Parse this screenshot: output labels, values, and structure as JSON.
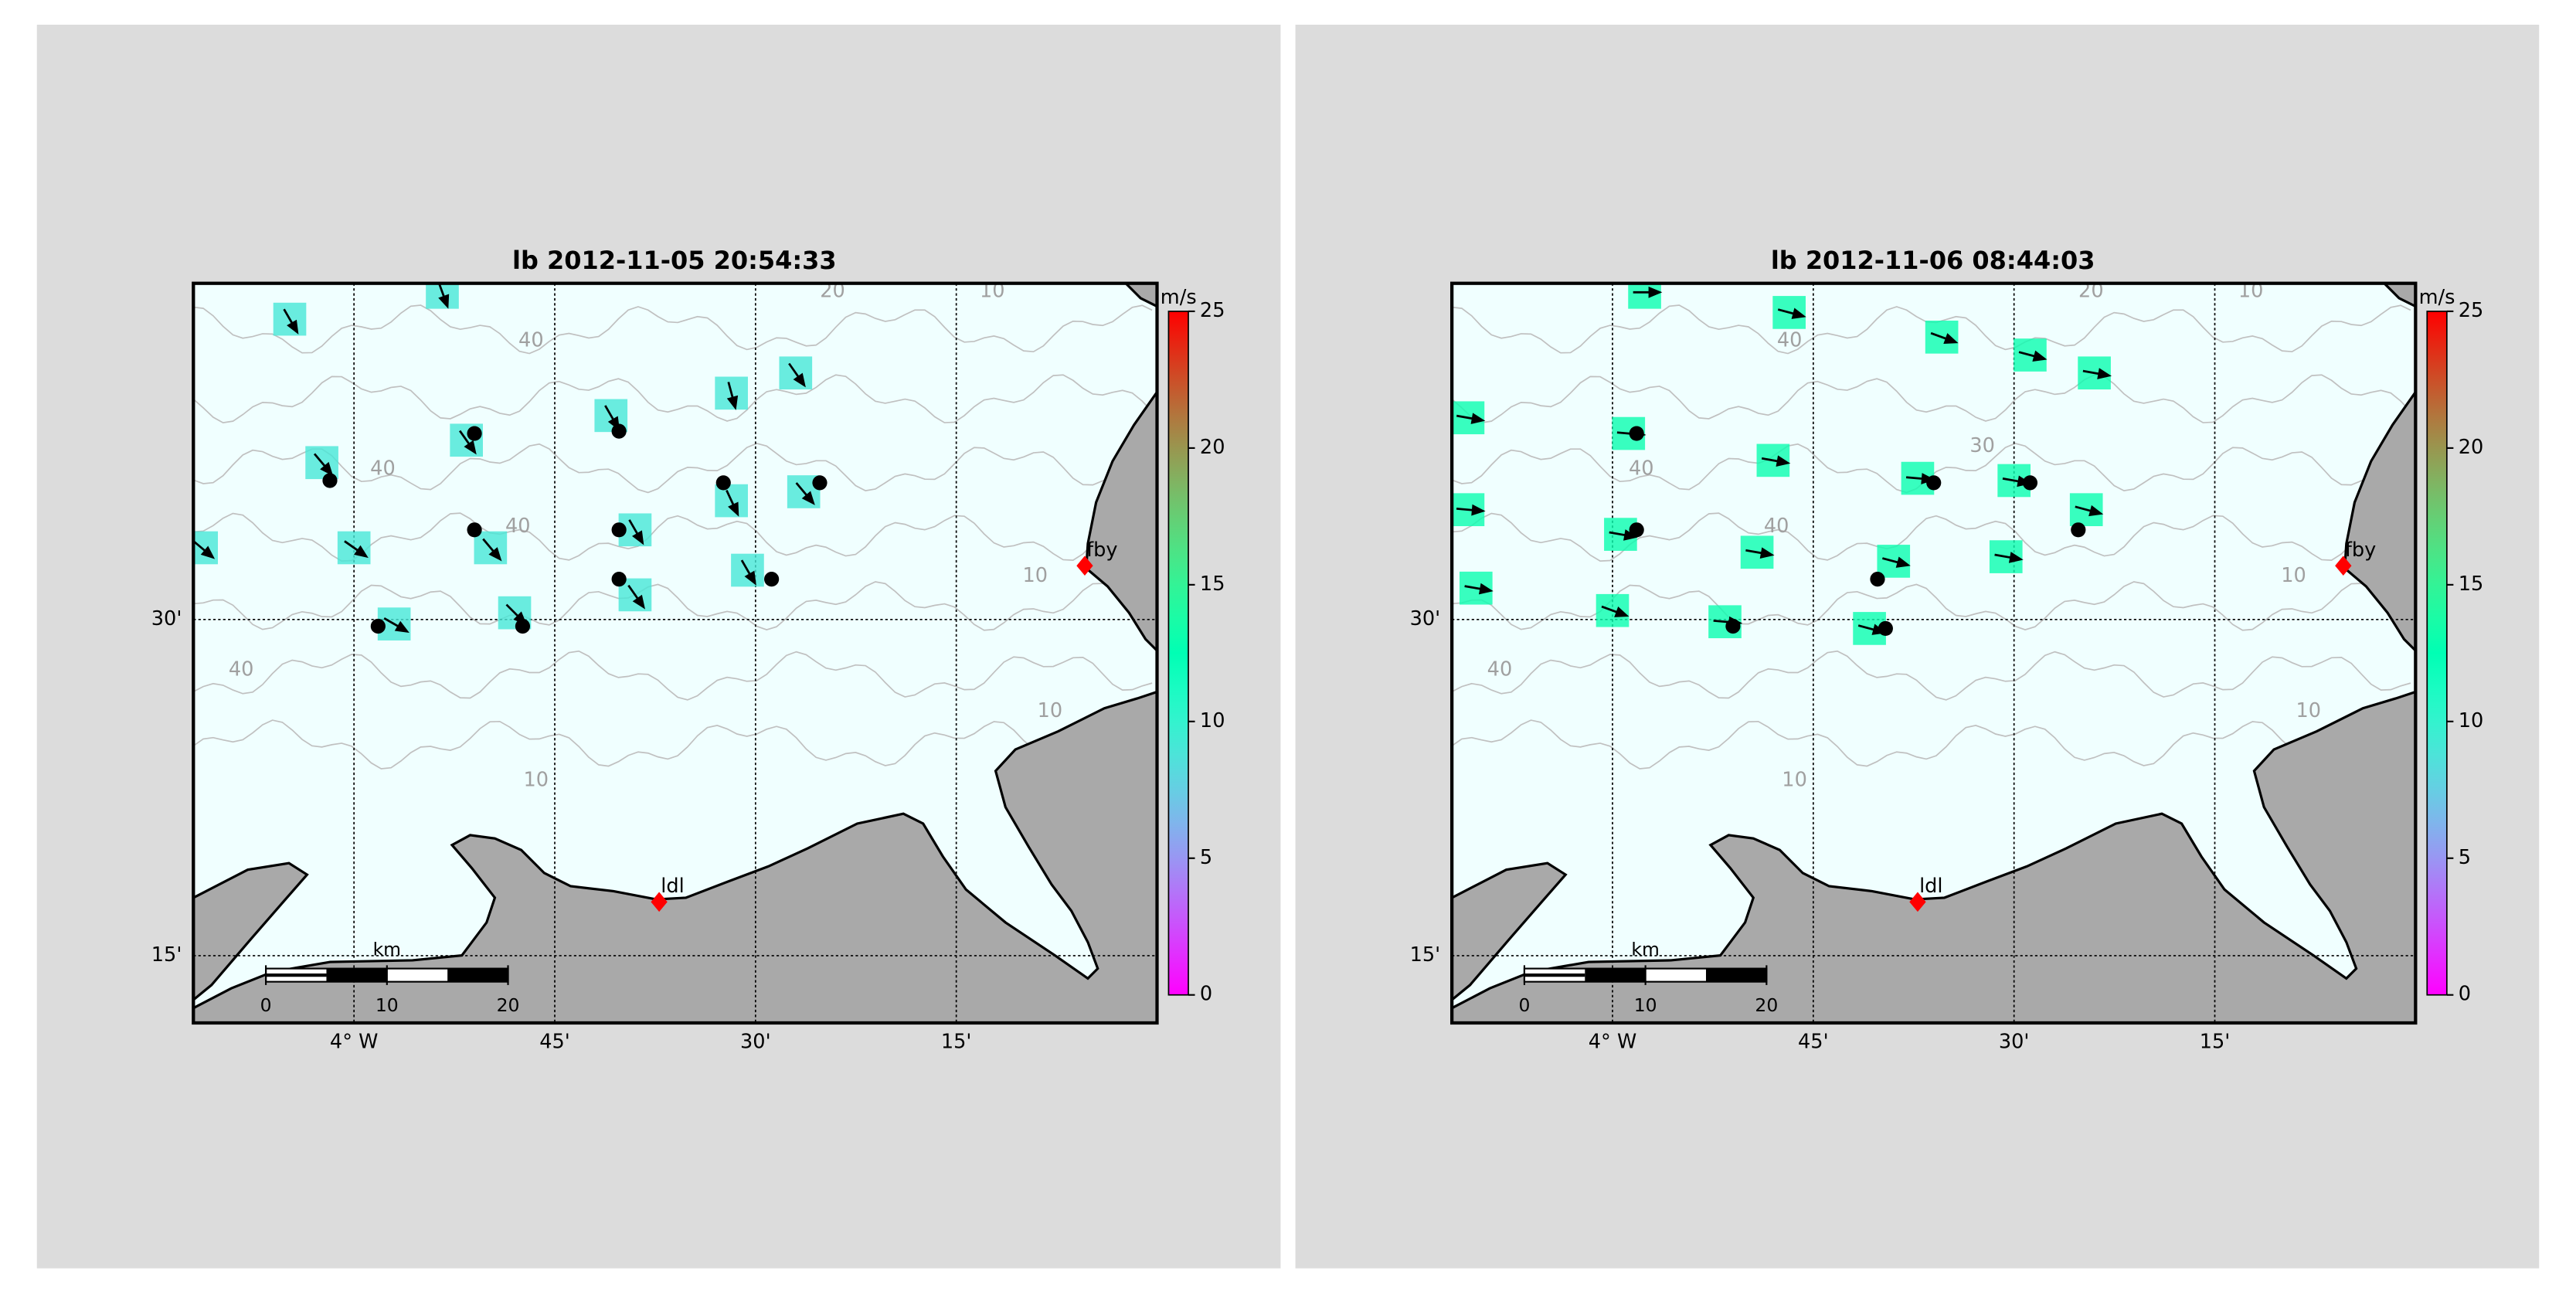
{
  "panels": [
    {
      "title": "lb 2012-11-05 20:54:33",
      "map": {
        "xlim": [
          -4.2,
          -3.0
        ],
        "ylim": [
          12,
          45
        ],
        "xticks": [
          {
            "value": -4,
            "label": "4° W"
          },
          {
            "value": -3.75,
            "label": "45'"
          },
          {
            "value": -3.5,
            "label": "30'"
          },
          {
            "value": -3.25,
            "label": "15'"
          }
        ],
        "yticks": [
          {
            "value": 30,
            "label": "30'"
          },
          {
            "value": 15,
            "label": "15'"
          }
        ]
      },
      "colorbar": {
        "label": "m/s",
        "lim": [
          0,
          25
        ],
        "ticks": [
          0,
          5,
          10,
          15,
          20,
          25
        ]
      },
      "stations": [
        {
          "name": "fby",
          "lon": -3.09,
          "lat": 32.4,
          "color": "#ff0000"
        },
        {
          "name": "ldl",
          "lon": -3.62,
          "lat": 17.4,
          "color": "#ff0000"
        }
      ],
      "scale_bar": {
        "label": "km",
        "ticks": [
          0,
          10,
          20
        ]
      },
      "contour_labels": [
        "40",
        "40",
        "40",
        "40",
        "20",
        "10",
        "10",
        "10",
        "10"
      ],
      "wind": {
        "lon": [
          -4.08,
          -3.89,
          -4.04,
          -3.86,
          -3.68,
          -3.53,
          -3.45,
          -4.0,
          -3.83,
          -3.65,
          -3.53,
          -3.44,
          -4.19,
          -3.51,
          -3.65,
          -3.8,
          -3.95
        ],
        "lat": [
          43.4,
          44.6,
          37.0,
          38.0,
          39.1,
          40.1,
          41.0,
          33.2,
          33.2,
          34.0,
          35.3,
          35.7,
          33.2,
          32.2,
          31.1,
          30.3,
          29.8
        ],
        "speed": [
          9,
          9,
          9,
          9,
          9,
          9,
          9,
          9,
          9,
          9,
          9,
          9,
          9,
          9,
          9,
          9,
          9
        ],
        "direction": [
          150,
          160,
          140,
          145,
          150,
          165,
          145,
          125,
          140,
          150,
          155,
          140,
          130,
          150,
          145,
          135,
          120
        ]
      },
      "observations": {
        "lon": [
          -3.85,
          -3.67,
          -4.03,
          -3.54,
          -3.42,
          -3.85,
          -3.67,
          -3.67,
          -3.48,
          -3.79,
          -3.97
        ],
        "lat": [
          38.3,
          38.4,
          36.2,
          36.1,
          36.1,
          34.0,
          34.0,
          31.8,
          31.8,
          29.7,
          29.7
        ]
      }
    },
    {
      "title": "lb 2012-11-06 08:44:03",
      "map": {
        "xlim": [
          -4.2,
          -3.0
        ],
        "ylim": [
          12,
          45
        ],
        "xticks": [
          {
            "value": -4,
            "label": "4° W"
          },
          {
            "value": -3.75,
            "label": "45'"
          },
          {
            "value": -3.5,
            "label": "30'"
          },
          {
            "value": -3.25,
            "label": "15'"
          }
        ],
        "yticks": [
          {
            "value": 30,
            "label": "30'"
          },
          {
            "value": 15,
            "label": "15'"
          }
        ]
      },
      "colorbar": {
        "label": "m/s",
        "lim": [
          0,
          25
        ],
        "ticks": [
          0,
          5,
          10,
          15,
          20,
          25
        ]
      },
      "stations": [
        {
          "name": "fby",
          "lon": -3.09,
          "lat": 32.4,
          "color": "#ff0000"
        },
        {
          "name": "ldl",
          "lon": -3.62,
          "lat": 17.4,
          "color": "#ff0000"
        }
      ],
      "scale_bar": {
        "label": "km",
        "ticks": [
          0,
          10,
          20
        ]
      },
      "contour_labels": [
        "40",
        "40",
        "40",
        "40",
        "30",
        "20",
        "10",
        "10",
        "10",
        "10"
      ],
      "wind": {
        "lon": [
          -3.96,
          -3.78,
          -3.59,
          -3.48,
          -3.4,
          -4.18,
          -3.98,
          -3.8,
          -3.62,
          -3.5,
          -4.18,
          -3.41,
          -3.99,
          -3.82,
          -3.65,
          -3.51,
          -4.17,
          -4.0,
          -3.86,
          -3.68
        ],
        "lat": [
          44.6,
          43.7,
          42.6,
          41.8,
          41.0,
          39.0,
          38.3,
          37.1,
          36.3,
          36.2,
          34.9,
          34.9,
          33.8,
          33.0,
          32.6,
          32.8,
          31.4,
          30.4,
          29.9,
          29.6
        ],
        "speed": [
          13,
          13,
          13,
          13,
          13,
          13,
          13,
          13,
          13,
          13,
          13,
          13,
          13,
          13,
          13,
          13,
          13,
          13,
          13,
          13
        ],
        "direction": [
          90,
          105,
          110,
          105,
          100,
          100,
          95,
          100,
          95,
          100,
          95,
          105,
          100,
          100,
          105,
          100,
          100,
          110,
          95,
          105
        ]
      },
      "observations": {
        "lon": [
          -3.97,
          -3.6,
          -3.48,
          -3.97,
          -3.42,
          -3.67,
          -3.85,
          -3.66
        ],
        "lat": [
          38.3,
          36.1,
          36.1,
          34.0,
          34.0,
          31.8,
          29.7,
          29.6
        ]
      }
    }
  ]
}
